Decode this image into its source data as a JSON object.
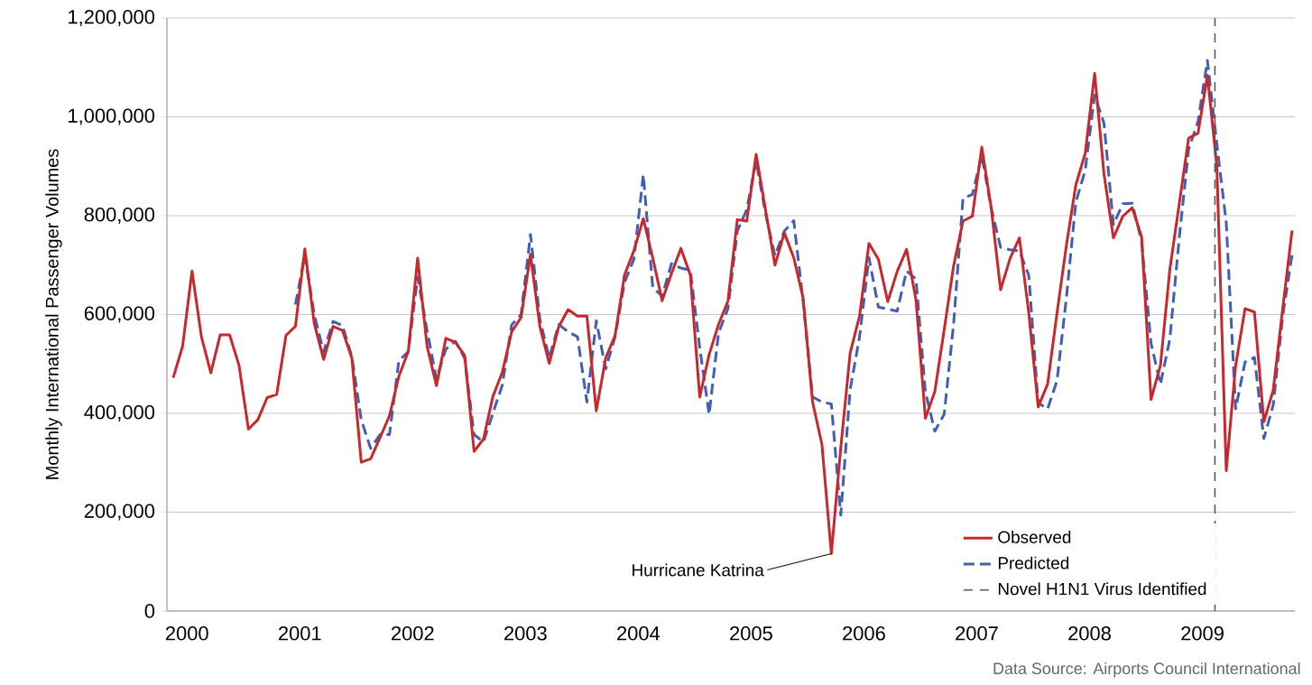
{
  "chart_data": {
    "type": "line",
    "ylabel": "Monthly International Passenger Volumes",
    "x": [
      "2000-01",
      "2000-02",
      "2000-03",
      "2000-04",
      "2000-05",
      "2000-06",
      "2000-07",
      "2000-08",
      "2000-09",
      "2000-10",
      "2000-11",
      "2000-12",
      "2001-01",
      "2001-02",
      "2001-03",
      "2001-04",
      "2001-05",
      "2001-06",
      "2001-07",
      "2001-08",
      "2001-09",
      "2001-10",
      "2001-11",
      "2001-12",
      "2002-01",
      "2002-02",
      "2002-03",
      "2002-04",
      "2002-05",
      "2002-06",
      "2002-07",
      "2002-08",
      "2002-09",
      "2002-10",
      "2002-11",
      "2002-12",
      "2003-01",
      "2003-02",
      "2003-03",
      "2003-04",
      "2003-05",
      "2003-06",
      "2003-07",
      "2003-08",
      "2003-09",
      "2003-10",
      "2003-11",
      "2003-12",
      "2004-01",
      "2004-02",
      "2004-03",
      "2004-04",
      "2004-05",
      "2004-06",
      "2004-07",
      "2004-08",
      "2004-09",
      "2004-10",
      "2004-11",
      "2004-12",
      "2005-01",
      "2005-02",
      "2005-03",
      "2005-04",
      "2005-05",
      "2005-06",
      "2005-07",
      "2005-08",
      "2005-09",
      "2005-10",
      "2005-11",
      "2005-12",
      "2006-01",
      "2006-02",
      "2006-03",
      "2006-04",
      "2006-05",
      "2006-06",
      "2006-07",
      "2006-08",
      "2006-09",
      "2006-10",
      "2006-11",
      "2006-12",
      "2007-01",
      "2007-02",
      "2007-03",
      "2007-04",
      "2007-05",
      "2007-06",
      "2007-07",
      "2007-08",
      "2007-09",
      "2007-10",
      "2007-11",
      "2007-12",
      "2008-01",
      "2008-02",
      "2008-03",
      "2008-04",
      "2008-05",
      "2008-06",
      "2008-07",
      "2008-08",
      "2008-09",
      "2008-10",
      "2008-11",
      "2008-12",
      "2009-01",
      "2009-02",
      "2009-03",
      "2009-04",
      "2009-05",
      "2009-06",
      "2009-07",
      "2009-08",
      "2009-09",
      "2009-10",
      "2009-11",
      "2009-12"
    ],
    "series": [
      {
        "name": "Observed",
        "color": "#c8282d",
        "line_style": "solid",
        "values": [
          472000,
          536000,
          688000,
          555000,
          482000,
          559000,
          559000,
          497000,
          368000,
          387000,
          432000,
          438000,
          558000,
          576000,
          733000,
          582000,
          509000,
          576000,
          568000,
          512000,
          301000,
          308000,
          351000,
          395000,
          475000,
          525000,
          714000,
          536000,
          456000,
          552000,
          544000,
          517000,
          323000,
          348000,
          434000,
          483000,
          565000,
          594000,
          722000,
          575000,
          501000,
          575000,
          610000,
          597000,
          597000,
          405000,
          512000,
          558000,
          680000,
          729000,
          794000,
          715000,
          628000,
          683000,
          734000,
          680000,
          433000,
          519000,
          580000,
          627000,
          792000,
          789000,
          924000,
          812000,
          700000,
          765000,
          715000,
          633000,
          423000,
          337000,
          116000,
          330000,
          522000,
          597000,
          744000,
          712000,
          626000,
          687000,
          732000,
          630000,
          390000,
          444000,
          569000,
          698000,
          789000,
          799000,
          939000,
          816000,
          650000,
          713000,
          755000,
          603000,
          413000,
          459000,
          603000,
          740000,
          862000,
          926000,
          1088000,
          884000,
          755000,
          799000,
          816000,
          757000,
          428000,
          497000,
          691000,
          824000,
          957000,
          967000,
          1084000,
          900000,
          284000,
          497000,
          612000,
          605000,
          383000,
          447000,
          611000,
          770000
        ]
      },
      {
        "name": "Predicted",
        "color": "#3f5fb4",
        "line_style": "dashed",
        "values": [
          null,
          null,
          null,
          null,
          null,
          null,
          null,
          null,
          null,
          null,
          null,
          null,
          null,
          620000,
          720000,
          600000,
          524000,
          586000,
          578000,
          515000,
          387000,
          329000,
          357000,
          357000,
          506000,
          525000,
          676000,
          567000,
          470000,
          530000,
          546000,
          512000,
          357000,
          342000,
          400000,
          457000,
          579000,
          600000,
          762000,
          590000,
          512000,
          580000,
          565000,
          555000,
          423000,
          587000,
          490000,
          555000,
          665000,
          712000,
          883000,
          655000,
          637000,
          703000,
          694000,
          690000,
          533000,
          398000,
          562000,
          612000,
          769000,
          812000,
          911000,
          804000,
          719000,
          769000,
          790000,
          626000,
          433000,
          423000,
          419000,
          194000,
          448000,
          555000,
          715000,
          615000,
          611000,
          607000,
          688000,
          672000,
          444000,
          364000,
          398000,
          580000,
          835000,
          843000,
          922000,
          816000,
          736000,
          731000,
          729000,
          679000,
          421000,
          409000,
          466000,
          634000,
          827000,
          892000,
          1044000,
          987000,
          782000,
          824000,
          825000,
          748000,
          542000,
          459000,
          550000,
          755000,
          934000,
          991000,
          1114000,
          945000,
          786000,
          409000,
          504000,
          513000,
          349000,
          417000,
          596000,
          721000
        ]
      }
    ],
    "xlim": [
      "1999-12-11",
      "2009-12-10"
    ],
    "xticks": [
      {
        "value": "2000-02-15",
        "label": "2000"
      },
      {
        "value": "2001-02-15",
        "label": "2001"
      },
      {
        "value": "2002-02-15",
        "label": "2002"
      },
      {
        "value": "2003-02-15",
        "label": "2003"
      },
      {
        "value": "2004-02-15",
        "label": "2004"
      },
      {
        "value": "2005-02-15",
        "label": "2005"
      },
      {
        "value": "2006-02-15",
        "label": "2006"
      },
      {
        "value": "2007-02-15",
        "label": "2007"
      },
      {
        "value": "2008-02-15",
        "label": "2008"
      },
      {
        "value": "2009-02-15",
        "label": "2009"
      }
    ],
    "ylim": [
      0,
      1200000
    ],
    "yticks": [
      0,
      {
        "value": 200000,
        "label": "200,000"
      },
      {
        "value": 400000,
        "label": "400,000"
      },
      {
        "value": 600000,
        "label": "600,000"
      },
      {
        "value": 800000,
        "label": "800,000"
      },
      {
        "value": 1000000,
        "label": "1,000,000"
      },
      {
        "value": 1200000,
        "label": "1,200,000"
      }
    ],
    "grid": "y",
    "legend": "bottom right",
    "ref_lines": [
      {
        "axis": "x",
        "value": "2009-03-25",
        "label": "Novel H1N1 Virus Identified",
        "color": "#595959",
        "line_style": "dashed"
      }
    ],
    "annotations": [
      {
        "text": "Hurricane Katrina",
        "x": "2005-11",
        "y": 116000
      },
      "Data Source: Airports Council International"
    ]
  }
}
